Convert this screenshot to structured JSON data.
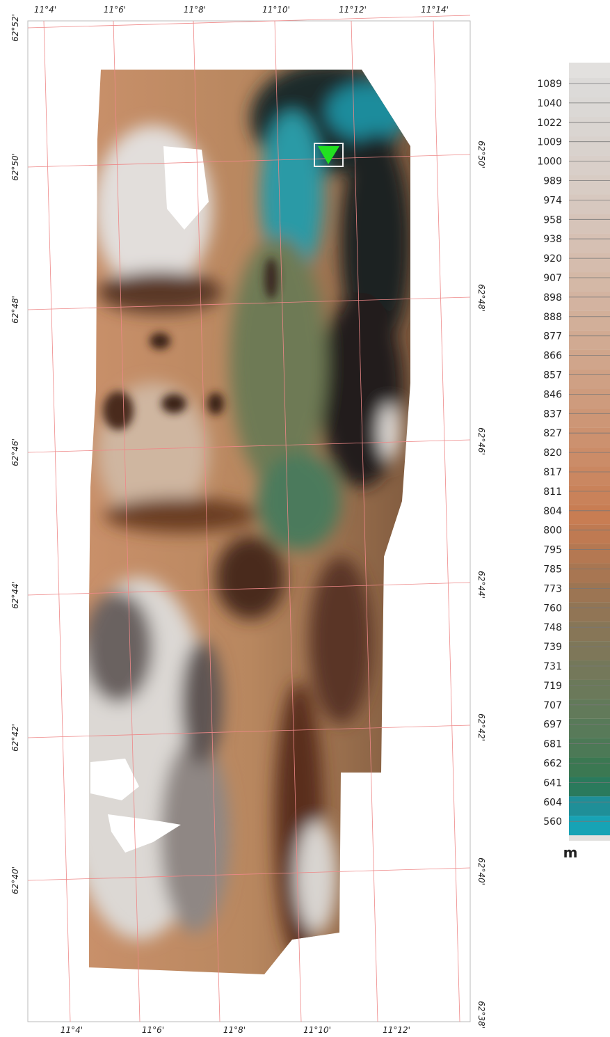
{
  "map": {
    "top_longitudes": [
      "11°4'",
      "11°6'",
      "11°8'",
      "11°10'",
      "11°12'",
      "11°14'"
    ],
    "bottom_longitudes": [
      "11°4'",
      "11°6'",
      "11°8'",
      "11°10'",
      "11°12'"
    ],
    "left_latitudes": [
      "62°52'",
      "62°50'",
      "62°48'",
      "62°46'",
      "62°44'",
      "62°42'",
      "62°40'"
    ],
    "right_latitudes": [
      "62°50'",
      "62°48'",
      "62°46'",
      "62°44'",
      "62°42'",
      "62°40'",
      "62°38'"
    ]
  },
  "legend": {
    "unit": "m",
    "entries": [
      {
        "value": 1089,
        "color": "#dcdad8"
      },
      {
        "value": 1040,
        "color": "#dbd8d5"
      },
      {
        "value": 1022,
        "color": "#dad5d1"
      },
      {
        "value": 1009,
        "color": "#d9d2cd"
      },
      {
        "value": 1000,
        "color": "#d9cfc9"
      },
      {
        "value": 989,
        "color": "#d8ccc4"
      },
      {
        "value": 974,
        "color": "#d7c8bf"
      },
      {
        "value": 958,
        "color": "#d6c4b9"
      },
      {
        "value": 938,
        "color": "#d6c0b3"
      },
      {
        "value": 920,
        "color": "#d5bcad"
      },
      {
        "value": 907,
        "color": "#d4b8a6"
      },
      {
        "value": 898,
        "color": "#d3b3a0"
      },
      {
        "value": 888,
        "color": "#d2af99"
      },
      {
        "value": 877,
        "color": "#d1aa92"
      },
      {
        "value": 866,
        "color": "#d0a58b"
      },
      {
        "value": 857,
        "color": "#cfa084"
      },
      {
        "value": 846,
        "color": "#ce9b7d"
      },
      {
        "value": 837,
        "color": "#cd9676"
      },
      {
        "value": 827,
        "color": "#cc916f"
      },
      {
        "value": 820,
        "color": "#cb8c68"
      },
      {
        "value": 817,
        "color": "#ca8761"
      },
      {
        "value": 811,
        "color": "#c9825a"
      },
      {
        "value": 804,
        "color": "#c87d53"
      },
      {
        "value": 800,
        "color": "#bf7a52"
      },
      {
        "value": 795,
        "color": "#b47852"
      },
      {
        "value": 785,
        "color": "#a87652"
      },
      {
        "value": 773,
        "color": "#9c7553"
      },
      {
        "value": 760,
        "color": "#917555"
      },
      {
        "value": 748,
        "color": "#877657"
      },
      {
        "value": 739,
        "color": "#7e7759"
      },
      {
        "value": 731,
        "color": "#74785a"
      },
      {
        "value": 719,
        "color": "#6b795a"
      },
      {
        "value": 707,
        "color": "#627a5a"
      },
      {
        "value": 697,
        "color": "#587a59"
      },
      {
        "value": 681,
        "color": "#4c7956"
      },
      {
        "value": 662,
        "color": "#3b7852"
      },
      {
        "value": 641,
        "color": "#2a7a5c"
      },
      {
        "value": 604,
        "color": "#1f8f98"
      },
      {
        "value": 560,
        "color": "#17a3b5"
      }
    ]
  }
}
